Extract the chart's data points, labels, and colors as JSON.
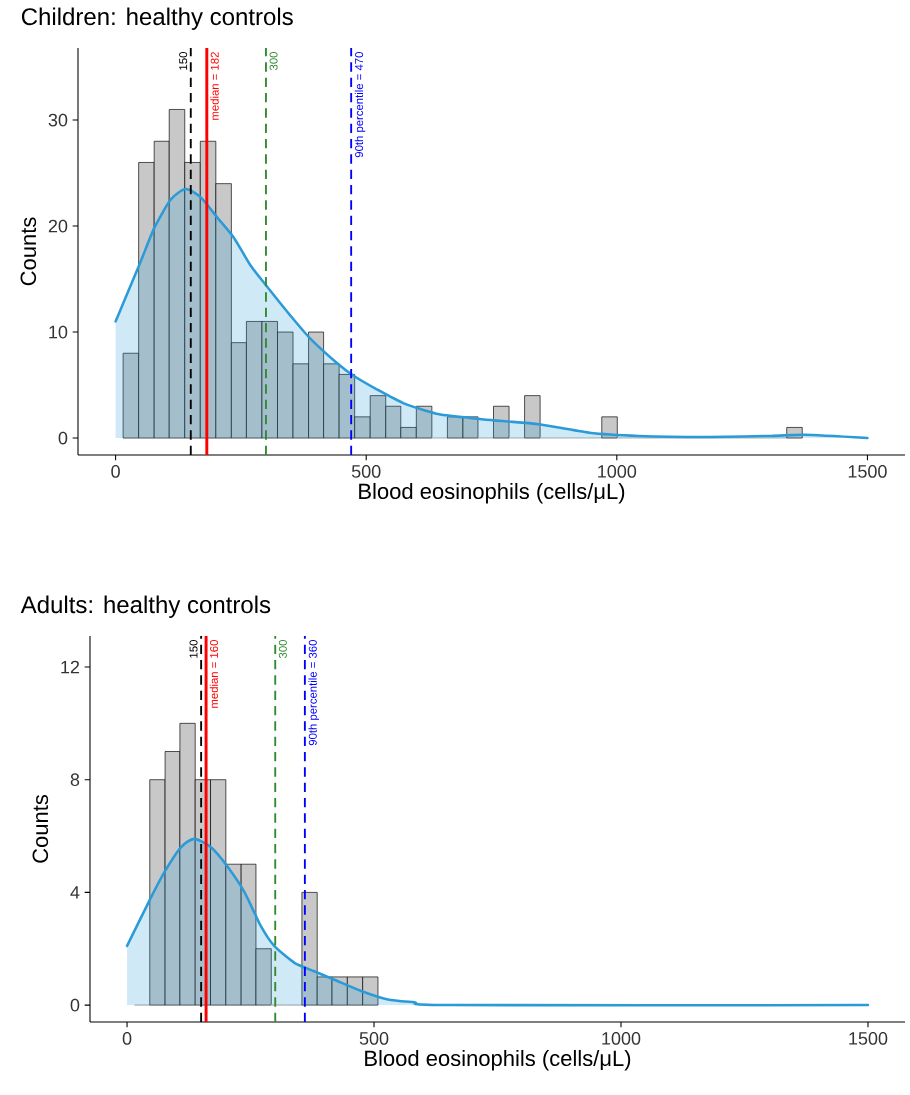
{
  "chart_data": [
    {
      "type": "histogram",
      "title": "Children: healthy controls",
      "xlabel": "Blood eosinophils (cells/μL)",
      "ylabel": "Counts",
      "bins": [
        15,
        46,
        77,
        107,
        138,
        169,
        200,
        231,
        261,
        292,
        323,
        354,
        385,
        415,
        446,
        477,
        508,
        539,
        569,
        600,
        631,
        662,
        693,
        723,
        754,
        785,
        816,
        847,
        877,
        908,
        939,
        970,
        1001,
        1031,
        1062,
        1093,
        1124,
        1155,
        1185,
        1216,
        1247,
        1278,
        1309,
        1339,
        1370
      ],
      "series": [
        {
          "type": "histogram",
          "color": "#c8c8c8",
          "values": [
            8,
            26,
            28,
            31,
            26,
            28,
            24,
            9,
            11,
            11,
            10,
            7,
            10,
            7,
            6,
            2,
            4,
            3,
            1,
            3,
            0,
            2,
            2,
            0,
            3,
            0,
            4,
            0,
            0,
            0,
            0,
            2,
            0,
            0,
            0,
            0,
            0,
            0,
            0,
            0,
            0,
            0,
            0,
            1
          ]
        },
        {
          "type": "area",
          "color": "#2b9bd8",
          "x": [
            0,
            47,
            77,
            110,
            140,
            170,
            203,
            236,
            269,
            302,
            348,
            388,
            441,
            474,
            521,
            574,
            640,
            706,
            772,
            845,
            945,
            1044,
            1176,
            1308,
            1374,
            1500
          ],
          "values": [
            11,
            16.3,
            19.8,
            22.5,
            23.5,
            22.7,
            20.8,
            18.9,
            16.3,
            14.3,
            11.6,
            9.4,
            7.1,
            5.9,
            4.6,
            3.3,
            2.3,
            1.9,
            1.6,
            1.3,
            0.5,
            0.2,
            0.1,
            0.2,
            0.3,
            0
          ]
        }
      ],
      "xlim": [
        -75,
        1575
      ],
      "ylim": [
        -1.6,
        36.8
      ],
      "xticks": [
        0,
        500,
        1000,
        1500
      ],
      "yticks": [
        0,
        10,
        20,
        30
      ],
      "ref_lines": [
        {
          "axis": "x",
          "value": 150,
          "label": "150",
          "color": "#000000",
          "line_style": "dashed"
        },
        {
          "axis": "x",
          "value": 182,
          "label": "median = 182",
          "color": "#ff0000",
          "line_style": "solid"
        },
        {
          "axis": "x",
          "value": 300,
          "label": "300",
          "color": "#2e8b2e",
          "line_style": "dashed"
        },
        {
          "axis": "x",
          "value": 470,
          "label": "90th percentile = 470",
          "color": "#0000ff",
          "line_style": "dashed"
        }
      ]
    },
    {
      "type": "histogram",
      "title": "Adults: healthy controls",
      "xlabel": "Blood eosinophils (cells/μL)",
      "ylabel": "Counts",
      "bins": [
        15,
        46,
        77,
        107,
        138,
        169,
        200,
        231,
        261,
        292,
        323,
        354,
        385,
        415,
        446,
        477,
        508
      ],
      "series": [
        {
          "type": "histogram",
          "color": "#c8c8c8",
          "values": [
            0,
            8,
            9,
            10,
            8,
            8,
            5,
            5,
            2,
            0,
            0,
            4,
            1,
            1,
            1,
            1
          ]
        },
        {
          "type": "area",
          "color": "#2b9bd8",
          "x": [
            0,
            45,
            75,
            109,
            136,
            170,
            204,
            238,
            271,
            298,
            339,
            379,
            420,
            474,
            528,
            582,
            650,
            1500
          ],
          "values": [
            2.1,
            3.7,
            4.7,
            5.6,
            5.9,
            5.6,
            4.9,
            4,
            2.8,
            2.1,
            1.5,
            1.2,
            0.9,
            0.5,
            0.2,
            0.1,
            0,
            0
          ]
        }
      ],
      "xlim": [
        -75,
        1575
      ],
      "ylim": [
        -0.6,
        13.1
      ],
      "xticks": [
        0,
        500,
        1000,
        1500
      ],
      "yticks": [
        0,
        4,
        8,
        12
      ],
      "ref_lines": [
        {
          "axis": "x",
          "value": 150,
          "label": "150",
          "color": "#000000",
          "line_style": "dashed"
        },
        {
          "axis": "x",
          "value": 160,
          "label": "median = 160",
          "color": "#ff0000",
          "line_style": "solid"
        },
        {
          "axis": "x",
          "value": 300,
          "label": "300",
          "color": "#2e8b2e",
          "line_style": "dashed"
        },
        {
          "axis": "x",
          "value": 360,
          "label": "90th percentile = 360",
          "color": "#0000ff",
          "line_style": "dashed"
        }
      ]
    }
  ]
}
